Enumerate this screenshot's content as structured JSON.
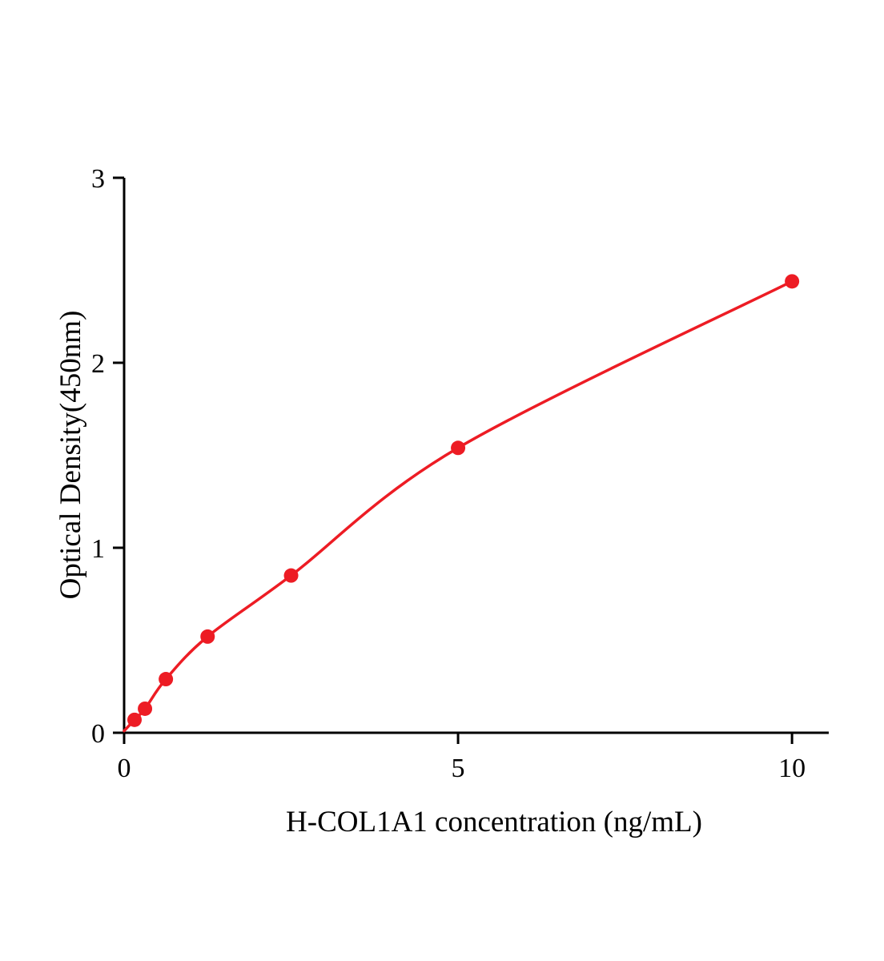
{
  "chart_data": {
    "type": "scatter",
    "title": "",
    "xlabel": "H-COL1A1 concentration (ng/mL)",
    "ylabel": "Optical Density(450nm)",
    "xlim": [
      0,
      10.55
    ],
    "ylim": [
      0,
      3
    ],
    "x_ticks": [
      0,
      5,
      10
    ],
    "y_ticks": [
      0,
      1,
      2,
      3
    ],
    "grid": false,
    "legend": "none",
    "axis_color": "#000000",
    "series_color": "#ed1c24",
    "curve_start": {
      "x": 0,
      "y": 0.01
    },
    "points": [
      {
        "x": 0.156,
        "y": 0.07
      },
      {
        "x": 0.3125,
        "y": 0.13
      },
      {
        "x": 0.625,
        "y": 0.29
      },
      {
        "x": 1.25,
        "y": 0.52
      },
      {
        "x": 2.5,
        "y": 0.85
      },
      {
        "x": 5,
        "y": 1.54
      },
      {
        "x": 10,
        "y": 2.44
      }
    ]
  }
}
